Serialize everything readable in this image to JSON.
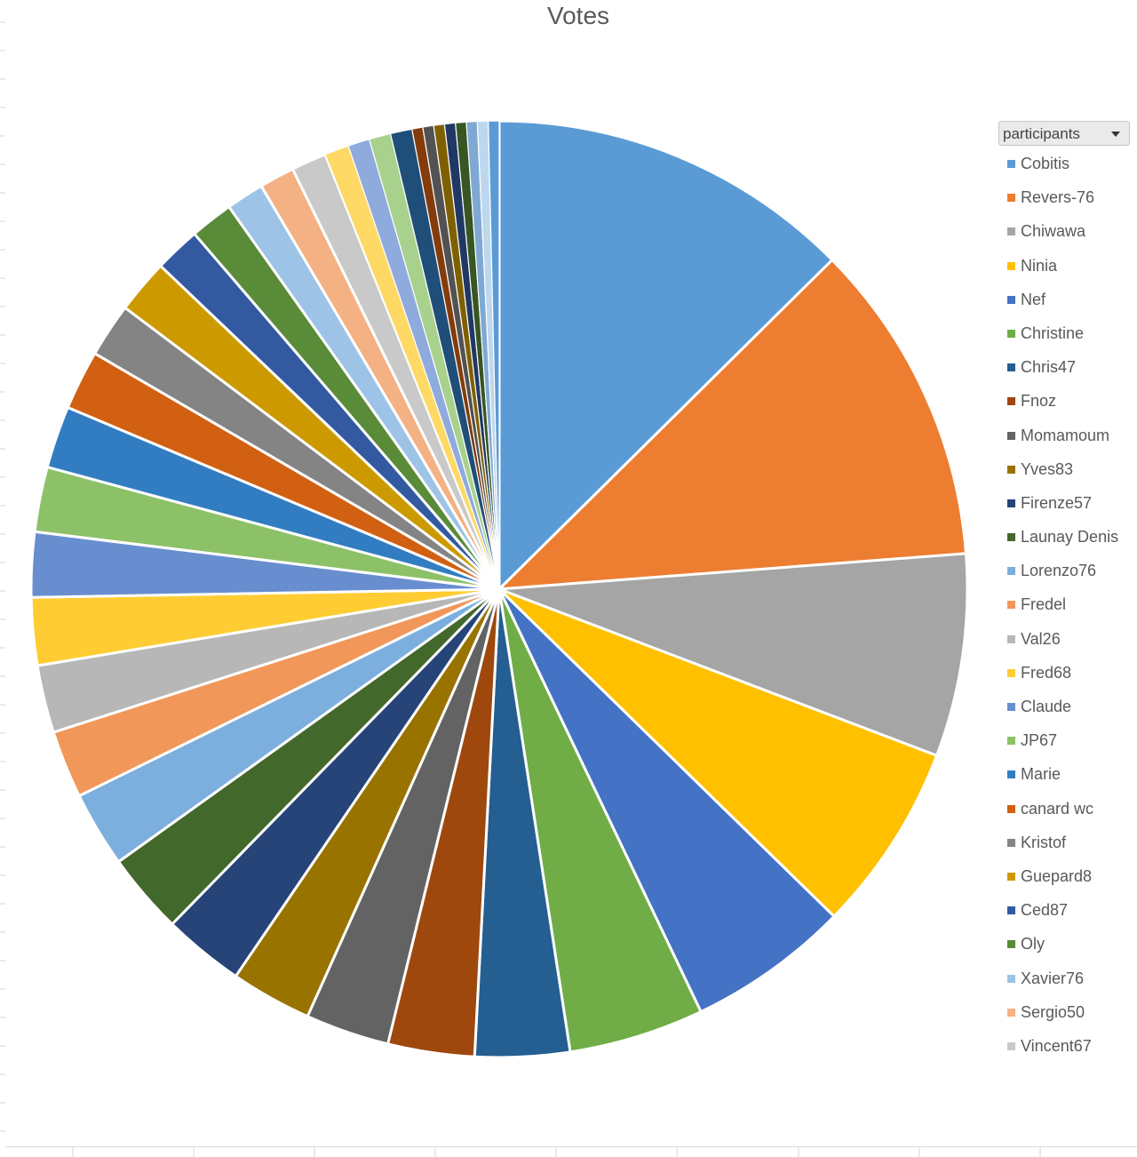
{
  "chart_data": {
    "type": "pie",
    "title": "Votes",
    "legend_filter_label": "participants",
    "legend_position": "right",
    "categories": [
      "Cobitis",
      "Revers-76",
      "Chiwawa",
      "Ninia",
      "Nef",
      "Christine",
      "Chris47",
      "Fnoz",
      "Momamoum",
      "Yves83",
      "Firenze57",
      "Launay Denis",
      "Lorenzo76",
      "Fredel",
      "Val26",
      "Fred68",
      "Claude",
      "JP67",
      "Marie",
      "canard wc",
      "Kristof",
      "Guepard8",
      "Ced87",
      "Oly",
      "Xavier76",
      "Sergio50",
      "Vincent67",
      "",
      "",
      "",
      "",
      "",
      "",
      "",
      "",
      "",
      "",
      "",
      ""
    ],
    "values": [
      13.5,
      12.0,
      7.5,
      7.0,
      6.0,
      5.0,
      3.5,
      3.2,
      3.1,
      3.0,
      3.0,
      3.0,
      2.8,
      2.5,
      2.5,
      2.5,
      2.4,
      2.4,
      2.3,
      2.2,
      2.0,
      2.0,
      1.7,
      1.6,
      1.4,
      1.3,
      1.3,
      0.9,
      0.8,
      0.8,
      0.8,
      0.4,
      0.4,
      0.4,
      0.4,
      0.4,
      0.4,
      0.4,
      0.4
    ],
    "colors": [
      "#5b9bd5",
      "#ed7d31",
      "#a5a5a5",
      "#ffc000",
      "#4472c4",
      "#70ad47",
      "#255e91",
      "#9e480e",
      "#636363",
      "#997300",
      "#264478",
      "#43682b",
      "#7cafdd",
      "#f1975a",
      "#b7b7b7",
      "#ffcd33",
      "#698ed0",
      "#8cc168",
      "#327dc2",
      "#d26012",
      "#848484",
      "#cc9a00",
      "#335aa1",
      "#5a8b39",
      "#9dc3e6",
      "#f4b183",
      "#c9c9c9",
      "#ffd966",
      "#8faadc",
      "#a9d18e",
      "#1f4e79",
      "#843c0c",
      "#525252",
      "#7f6000",
      "#203864",
      "#375623",
      "#7fa9d4",
      "#bdd7ee",
      "#5b9bd5"
    ]
  }
}
